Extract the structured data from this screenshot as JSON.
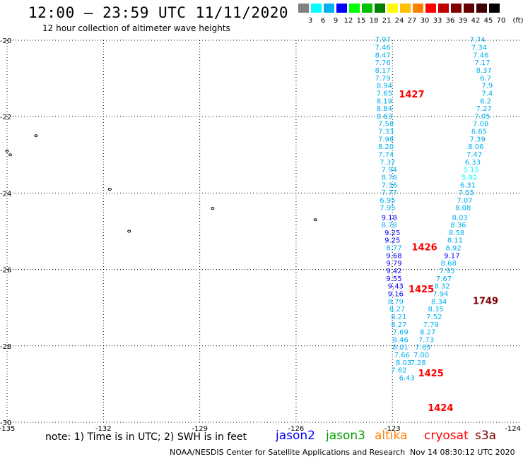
{
  "header": {
    "title": "12:00 — 23:59 UTC 11/11/2020",
    "subtitle": "12 hour collection of altimeter wave heights"
  },
  "legend": {
    "unit": "(ft)",
    "bins": [
      {
        "label": "3",
        "color": "#808080"
      },
      {
        "label": "6",
        "color": "#00ffff"
      },
      {
        "label": "9",
        "color": "#00b0f0"
      },
      {
        "label": "12",
        "color": "#0000ff"
      },
      {
        "label": "15",
        "color": "#00ff00"
      },
      {
        "label": "18",
        "color": "#00c000"
      },
      {
        "label": "21",
        "color": "#008000"
      },
      {
        "label": "24",
        "color": "#ffff00"
      },
      {
        "label": "27",
        "color": "#ffc000"
      },
      {
        "label": "30",
        "color": "#ff8000"
      },
      {
        "label": "33",
        "color": "#ff0000"
      },
      {
        "label": "36",
        "color": "#c00000"
      },
      {
        "label": "39",
        "color": "#800000"
      },
      {
        "label": "42",
        "color": "#600000"
      },
      {
        "label": "45",
        "color": "#400000"
      },
      {
        "label": "70",
        "color": "#000000"
      }
    ]
  },
  "note": "note: 1) Time is in UTC; 2) SWH is in feet",
  "satellites": [
    {
      "name": "jason2",
      "color": "#0000ff"
    },
    {
      "name": "jason3",
      "color": "#00a000"
    },
    {
      "name": "altika",
      "color": "#ff8000"
    },
    {
      "name": "cryosat",
      "color": "#ff0000"
    },
    {
      "name": "s3a",
      "color": "#800000"
    }
  ],
  "footer": {
    "agency": "NOAA/NESDIS Center for Satellite Applications and Research",
    "timestamp": "Nov 14 08:30:12 UTC 2020"
  },
  "chart_data": {
    "type": "scatter",
    "title": "12:00 — 23:59 UTC 11/11/2020",
    "subtitle": "12 hour collection of altimeter wave heights",
    "xlim": [
      -135,
      -124
    ],
    "ylim": [
      -30,
      -20
    ],
    "x_ticks": [
      "-135",
      "-132",
      "-129",
      "-126",
      "-123",
      "-124"
    ],
    "y_ticks": [
      "-20",
      "-22",
      "-24",
      "-26",
      "-28",
      "-30"
    ],
    "grid": "dotted",
    "time_labels": [
      {
        "text": "1427",
        "lon": -122.8,
        "lat": -21.5,
        "color": "#ff0000"
      },
      {
        "text": "1426",
        "lon": -122.4,
        "lat": -25.5,
        "color": "#ff0000"
      },
      {
        "text": "1425",
        "lon": -122.5,
        "lat": -26.6,
        "color": "#ff0000"
      },
      {
        "text": "1749",
        "lon": -120.5,
        "lat": -26.9,
        "color": "#800000"
      },
      {
        "text": "1425",
        "lon": -122.2,
        "lat": -28.8,
        "color": "#ff0000"
      },
      {
        "text": "1424",
        "lon": -121.9,
        "lat": -29.7,
        "color": "#ff0000"
      }
    ],
    "series": [
      {
        "name": "track-west",
        "points": [
          {
            "lon": -123.3,
            "lat": -20.05,
            "v": "7.97",
            "c": "#00b0f0"
          },
          {
            "lon": -123.3,
            "lat": -20.25,
            "v": "7.46",
            "c": "#00b0f0"
          },
          {
            "lon": -123.3,
            "lat": -20.45,
            "v": "8.47",
            "c": "#00b0f0"
          },
          {
            "lon": -123.3,
            "lat": -20.65,
            "v": "7.76",
            "c": "#00b0f0"
          },
          {
            "lon": -123.3,
            "lat": -20.85,
            "v": "8.17",
            "c": "#00b0f0"
          },
          {
            "lon": -123.3,
            "lat": -21.05,
            "v": "7.79",
            "c": "#00b0f0"
          },
          {
            "lon": -123.25,
            "lat": -21.25,
            "v": "8.94",
            "c": "#00b0f0"
          },
          {
            "lon": -123.25,
            "lat": -21.45,
            "v": "7.65",
            "c": "#00b0f0"
          },
          {
            "lon": -123.25,
            "lat": -21.65,
            "v": "8.19",
            "c": "#00b0f0"
          },
          {
            "lon": -123.25,
            "lat": -21.85,
            "v": "8.84",
            "c": "#00b0f0"
          },
          {
            "lon": -123.25,
            "lat": -22.05,
            "v": "8.63",
            "c": "#00b0f0"
          },
          {
            "lon": -123.2,
            "lat": -22.25,
            "v": "7.58",
            "c": "#00b0f0"
          },
          {
            "lon": -123.2,
            "lat": -22.45,
            "v": "7.33",
            "c": "#00b0f0"
          },
          {
            "lon": -123.2,
            "lat": -22.65,
            "v": "7.98",
            "c": "#00b0f0"
          },
          {
            "lon": -123.2,
            "lat": -22.85,
            "v": "8.20",
            "c": "#00b0f0"
          },
          {
            "lon": -123.2,
            "lat": -23.05,
            "v": "7.74",
            "c": "#00b0f0"
          },
          {
            "lon": -123.15,
            "lat": -23.25,
            "v": "7.37",
            "c": "#00b0f0"
          },
          {
            "lon": -123.1,
            "lat": -23.45,
            "v": "7.94",
            "c": "#00b0f0"
          },
          {
            "lon": -123.1,
            "lat": -23.65,
            "v": "8.76",
            "c": "#00b0f0"
          },
          {
            "lon": -123.1,
            "lat": -23.85,
            "v": "7.36",
            "c": "#00b0f0"
          },
          {
            "lon": -123.1,
            "lat": -24.05,
            "v": "7.77",
            "c": "#00b0f0"
          },
          {
            "lon": -123.15,
            "lat": -24.25,
            "v": "6.95",
            "c": "#00b0f0"
          },
          {
            "lon": -123.15,
            "lat": -24.45,
            "v": "7.95",
            "c": "#00b0f0"
          },
          {
            "lon": -123.1,
            "lat": -24.7,
            "v": "9.18",
            "c": "#0000ff"
          },
          {
            "lon": -123.1,
            "lat": -24.9,
            "v": "8.78",
            "c": "#00b0f0"
          },
          {
            "lon": -123.0,
            "lat": -25.1,
            "v": "9.25",
            "c": "#0000ff"
          },
          {
            "lon": -123.0,
            "lat": -25.3,
            "v": "9.25",
            "c": "#0000ff"
          },
          {
            "lon": -122.95,
            "lat": -25.5,
            "v": "8.77",
            "c": "#00b0f0"
          },
          {
            "lon": -122.95,
            "lat": -25.7,
            "v": "9.68",
            "c": "#0000ff"
          },
          {
            "lon": -122.95,
            "lat": -25.9,
            "v": "9.79",
            "c": "#0000ff"
          },
          {
            "lon": -122.95,
            "lat": -26.1,
            "v": "9.42",
            "c": "#0000ff"
          },
          {
            "lon": -122.95,
            "lat": -26.3,
            "v": "9.55",
            "c": "#0000ff"
          },
          {
            "lon": -122.9,
            "lat": -26.5,
            "v": "9.43",
            "c": "#0000ff"
          },
          {
            "lon": -122.9,
            "lat": -26.7,
            "v": "9.16",
            "c": "#0000ff"
          },
          {
            "lon": -122.9,
            "lat": -26.9,
            "v": "8.79",
            "c": "#00b0f0"
          },
          {
            "lon": -122.85,
            "lat": -27.1,
            "v": "8.27",
            "c": "#00b0f0"
          },
          {
            "lon": -122.8,
            "lat": -27.3,
            "v": "8.21",
            "c": "#00b0f0"
          },
          {
            "lon": -122.8,
            "lat": -27.5,
            "v": "8.27",
            "c": "#00b0f0"
          },
          {
            "lon": -122.75,
            "lat": -27.7,
            "v": "7.69",
            "c": "#00b0f0"
          },
          {
            "lon": -122.75,
            "lat": -27.9,
            "v": "8.46",
            "c": "#00b0f0"
          },
          {
            "lon": -122.75,
            "lat": -28.1,
            "v": "8.01",
            "c": "#00b0f0"
          },
          {
            "lon": -122.7,
            "lat": -28.3,
            "v": "7.66",
            "c": "#00b0f0"
          },
          {
            "lon": -122.65,
            "lat": -28.5,
            "v": "8.03",
            "c": "#00b0f0"
          },
          {
            "lon": -122.8,
            "lat": -28.7,
            "v": "7.62",
            "c": "#00b0f0"
          },
          {
            "lon": -122.55,
            "lat": -28.9,
            "v": "6.43",
            "c": "#00b0f0"
          }
        ]
      },
      {
        "name": "track-east",
        "points": [
          {
            "lon": -120.35,
            "lat": -20.05,
            "v": "7.74",
            "c": "#00b0f0"
          },
          {
            "lon": -120.3,
            "lat": -20.25,
            "v": "7.34",
            "c": "#00b0f0"
          },
          {
            "lon": -120.25,
            "lat": -20.45,
            "v": "7.46",
            "c": "#00b0f0"
          },
          {
            "lon": -120.2,
            "lat": -20.65,
            "v": "7.17",
            "c": "#00b0f0"
          },
          {
            "lon": -120.15,
            "lat": -20.85,
            "v": "8.37",
            "c": "#00b0f0"
          },
          {
            "lon": -120.1,
            "lat": -21.05,
            "v": "6.7",
            "c": "#00b0f0"
          },
          {
            "lon": -120.05,
            "lat": -21.25,
            "v": "7.9",
            "c": "#00b0f0"
          },
          {
            "lon": -120.05,
            "lat": -21.45,
            "v": "7.4",
            "c": "#00b0f0"
          },
          {
            "lon": -120.1,
            "lat": -21.65,
            "v": "6.2",
            "c": "#00b0f0"
          },
          {
            "lon": -120.15,
            "lat": -21.85,
            "v": "7.27",
            "c": "#00b0f0"
          },
          {
            "lon": -120.2,
            "lat": -22.05,
            "v": "7.05",
            "c": "#00b0f0"
          },
          {
            "lon": -120.25,
            "lat": -22.25,
            "v": "7.08",
            "c": "#00b0f0"
          },
          {
            "lon": -120.3,
            "lat": -22.45,
            "v": "6.65",
            "c": "#00b0f0"
          },
          {
            "lon": -120.35,
            "lat": -22.65,
            "v": "7.39",
            "c": "#00b0f0"
          },
          {
            "lon": -120.4,
            "lat": -22.85,
            "v": "8.06",
            "c": "#00b0f0"
          },
          {
            "lon": -120.45,
            "lat": -23.05,
            "v": "7.47",
            "c": "#00b0f0"
          },
          {
            "lon": -120.5,
            "lat": -23.25,
            "v": "6.33",
            "c": "#00b0f0"
          },
          {
            "lon": -120.55,
            "lat": -23.45,
            "v": "5.15",
            "c": "#00ffff"
          },
          {
            "lon": -120.6,
            "lat": -23.65,
            "v": "5.92",
            "c": "#00ffff"
          },
          {
            "lon": -120.65,
            "lat": -23.85,
            "v": "6.31",
            "c": "#00b0f0"
          },
          {
            "lon": -120.7,
            "lat": -24.05,
            "v": "7.55",
            "c": "#00b0f0"
          },
          {
            "lon": -120.75,
            "lat": -24.25,
            "v": "7.07",
            "c": "#00b0f0"
          },
          {
            "lon": -120.8,
            "lat": -24.45,
            "v": "8.08",
            "c": "#00b0f0"
          },
          {
            "lon": -120.9,
            "lat": -24.7,
            "v": "8.03",
            "c": "#00b0f0"
          },
          {
            "lon": -120.95,
            "lat": -24.9,
            "v": "8.36",
            "c": "#00b0f0"
          },
          {
            "lon": -121.0,
            "lat": -25.1,
            "v": "8.58",
            "c": "#00b0f0"
          },
          {
            "lon": -121.05,
            "lat": -25.3,
            "v": "8.11",
            "c": "#00b0f0"
          },
          {
            "lon": -121.1,
            "lat": -25.5,
            "v": "8.92",
            "c": "#00b0f0"
          },
          {
            "lon": -121.15,
            "lat": -25.7,
            "v": "9.17",
            "c": "#0000ff"
          },
          {
            "lon": -121.25,
            "lat": -25.9,
            "v": "8.68",
            "c": "#00b0f0"
          },
          {
            "lon": -121.3,
            "lat": -26.1,
            "v": "7.93",
            "c": "#00b0f0"
          },
          {
            "lon": -121.4,
            "lat": -26.3,
            "v": "7.67",
            "c": "#00b0f0"
          },
          {
            "lon": -121.45,
            "lat": -26.5,
            "v": "8.32",
            "c": "#00b0f0"
          },
          {
            "lon": -121.5,
            "lat": -26.7,
            "v": "7.94",
            "c": "#00b0f0"
          },
          {
            "lon": -121.55,
            "lat": -26.9,
            "v": "8.34",
            "c": "#00b0f0"
          },
          {
            "lon": -121.65,
            "lat": -27.1,
            "v": "8.35",
            "c": "#00b0f0"
          },
          {
            "lon": -121.7,
            "lat": -27.3,
            "v": "7.52",
            "c": "#00b0f0"
          },
          {
            "lon": -121.8,
            "lat": -27.5,
            "v": "7.79",
            "c": "#00b0f0"
          },
          {
            "lon": -121.9,
            "lat": -27.7,
            "v": "8.27",
            "c": "#00b0f0"
          },
          {
            "lon": -121.95,
            "lat": -27.9,
            "v": "7.73",
            "c": "#00b0f0"
          },
          {
            "lon": -122.05,
            "lat": -28.1,
            "v": "7.69",
            "c": "#00b0f0"
          },
          {
            "lon": -122.1,
            "lat": -28.3,
            "v": "7.00",
            "c": "#00b0f0"
          },
          {
            "lon": -122.2,
            "lat": -28.5,
            "v": "7.28",
            "c": "#00b0f0"
          }
        ]
      }
    ]
  }
}
